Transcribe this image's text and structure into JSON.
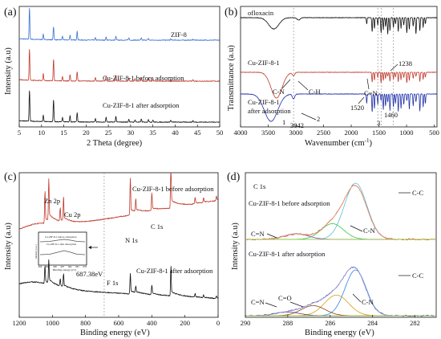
{
  "chart_data": [
    {
      "panel": "(a)",
      "type": "line",
      "xlabel": "2 Theta (degree)",
      "ylabel": "Intensity (a.u)",
      "xlim": [
        5,
        50
      ],
      "xticks": [
        5,
        10,
        15,
        20,
        25,
        30,
        35,
        40,
        45,
        50
      ],
      "series": [
        {
          "label": "ZIF-8",
          "color": "#3b6fd6",
          "offset": 0.72,
          "peaks": [
            [
              7.3,
              1.0
            ],
            [
              10.4,
              0.18
            ],
            [
              12.7,
              0.42
            ],
            [
              14.7,
              0.12
            ],
            [
              16.4,
              0.16
            ],
            [
              18.0,
              0.28
            ],
            [
              22.1,
              0.08
            ],
            [
              24.5,
              0.1
            ],
            [
              26.7,
              0.12
            ],
            [
              29.6,
              0.08
            ],
            [
              32.4,
              0.07
            ],
            [
              34.0,
              0.06
            ],
            [
              39.0,
              0.04
            ],
            [
              44.0,
              0.03
            ]
          ]
        },
        {
          "label": "Cu-ZIF-8-1 before adsorption",
          "color": "#c0392b",
          "offset": 0.38,
          "peaks": [
            [
              7.3,
              1.0
            ],
            [
              10.4,
              0.22
            ],
            [
              12.7,
              0.7
            ],
            [
              14.7,
              0.14
            ],
            [
              16.4,
              0.2
            ],
            [
              18.0,
              0.3
            ],
            [
              22.1,
              0.12
            ],
            [
              24.5,
              0.15
            ],
            [
              26.7,
              0.18
            ],
            [
              29.6,
              0.1
            ],
            [
              31.0,
              0.08
            ],
            [
              32.4,
              0.1
            ],
            [
              34.0,
              0.09
            ],
            [
              35.0,
              0.07
            ],
            [
              39.0,
              0.06
            ],
            [
              44.0,
              0.05
            ]
          ]
        },
        {
          "label": "Cu-ZIF-8-1  after adsorption",
          "color": "#111111",
          "offset": 0.04,
          "peaks": [
            [
              7.3,
              1.0
            ],
            [
              10.4,
              0.2
            ],
            [
              12.7,
              0.7
            ],
            [
              14.7,
              0.14
            ],
            [
              16.4,
              0.2
            ],
            [
              18.0,
              0.3
            ],
            [
              22.1,
              0.12
            ],
            [
              24.5,
              0.15
            ],
            [
              26.7,
              0.18
            ],
            [
              29.6,
              0.1
            ],
            [
              31.0,
              0.08
            ],
            [
              32.4,
              0.1
            ],
            [
              34.0,
              0.09
            ],
            [
              35.0,
              0.07
            ],
            [
              39.0,
              0.06
            ],
            [
              44.0,
              0.05
            ]
          ]
        }
      ]
    },
    {
      "panel": "(b)",
      "type": "line",
      "xlabel": "Wavenumber (cm",
      "xlabel_sup": "-1",
      "xlabel_end": ")",
      "ylabel": "Transmittance (a.u)",
      "xlim": [
        4000,
        450
      ],
      "xticks": [
        4000,
        3500,
        3000,
        2500,
        2000,
        1500,
        1000,
        500
      ],
      "vlines": [
        3042,
        1520,
        1460,
        1238
      ],
      "series": [
        {
          "label": "ofloxacin",
          "color": "#111111"
        },
        {
          "label": "Cu-ZIF-8-1",
          "color": "#c0392b"
        },
        {
          "label": "Cu-ZIF-8-1 after adsorption",
          "color": "#1f2fa8"
        }
      ],
      "annotations": [
        "C-H",
        "C-N",
        "C=N",
        "1238",
        "1520",
        "1460",
        "3042",
        "1",
        "2",
        "3"
      ]
    },
    {
      "panel": "(c)",
      "type": "line",
      "xlabel": "Binding energy (eV)",
      "ylabel": "Intensity (a.u)",
      "xlim": [
        1200,
        0
      ],
      "xticks": [
        1200,
        1000,
        800,
        600,
        400,
        200,
        0
      ],
      "vline": 687.38,
      "series": [
        {
          "label": "Cu-ZIF-8-1 before adsorption",
          "color": "#c0392b"
        },
        {
          "label": "Cu-ZIF-8-1 after adsorption",
          "color": "#111111"
        }
      ],
      "annotations": [
        "Zn 2p",
        "Cu 2p",
        "C 1s",
        "N 1s",
        "F 1s",
        "687.38eV"
      ],
      "inset": {
        "xlabel": "Binding energy (eV)",
        "ylabel": "Intensity (a.u.)",
        "labels": [
          "Cu-ZIF-8-1 before adsorption",
          "Cu-ZIF-8-1 after adsorption"
        ],
        "xticks": [
          "696",
          "693",
          "690",
          "687",
          "684",
          "681",
          "678"
        ]
      }
    },
    {
      "panel": "(d)",
      "type": "line",
      "title": "C 1s",
      "xlabel": "Binding energy (eV)",
      "ylabel": "Intensity (a.u)",
      "xlim": [
        290,
        281
      ],
      "xticks": [
        290,
        288,
        286,
        284,
        282
      ],
      "groups": [
        {
          "label": "Cu-ZIF-8-1 before adsorption",
          "components": [
            {
              "name": "C-C",
              "center": 284.8,
              "amp": 1.0,
              "width": 0.75,
              "color": "#5bc0de"
            },
            {
              "name": "C-N",
              "center": 285.9,
              "amp": 0.28,
              "width": 0.75,
              "color": "#2ecc40"
            },
            {
              "name": "C=N",
              "center": 287.6,
              "amp": 0.1,
              "width": 0.8,
              "color": "#8e44ad"
            }
          ]
        },
        {
          "label": "Cu-ZIF-8-1 after adsorption",
          "components": [
            {
              "name": "C-C",
              "center": 284.8,
              "amp": 1.0,
              "width": 0.7,
              "color": "#2e86de"
            },
            {
              "name": "C-N",
              "center": 285.7,
              "amp": 0.45,
              "width": 0.8,
              "color": "#d4a017"
            },
            {
              "name": "C=O",
              "center": 286.8,
              "amp": 0.22,
              "width": 0.8,
              "color": "#8b4513"
            },
            {
              "name": "C=N",
              "center": 288.0,
              "amp": 0.08,
              "width": 0.8,
              "color": "#6c3483"
            }
          ]
        }
      ]
    }
  ]
}
